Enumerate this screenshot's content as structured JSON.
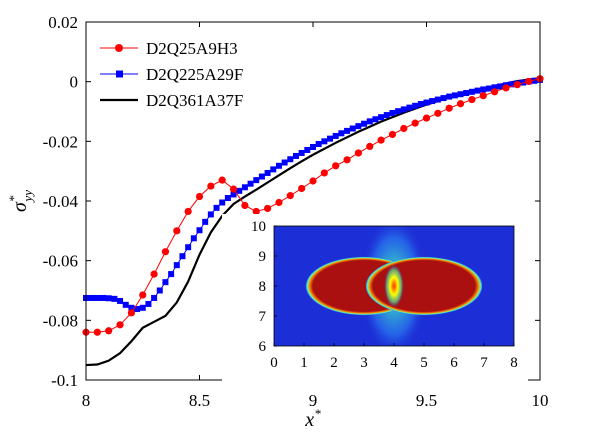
{
  "chart_data": [
    {
      "type": "line",
      "title": "",
      "xlabel": "x*",
      "ylabel": "σ*_yy",
      "xlim": [
        8,
        10
      ],
      "ylim": [
        -0.1,
        0.02
      ],
      "xticks": [
        "8",
        "8.5",
        "9",
        "9.5",
        "10"
      ],
      "yticks": [
        "-0.1",
        "-0.08",
        "-0.06",
        "-0.04",
        "-0.02",
        "0",
        "0.02"
      ],
      "legend_position": "top-left",
      "series": [
        {
          "name": "D2Q25A9H3",
          "color": "#ff0000",
          "marker": "circle",
          "x": [
            8.0,
            8.05,
            8.1,
            8.15,
            8.2,
            8.25,
            8.3,
            8.35,
            8.4,
            8.45,
            8.5,
            8.55,
            8.6,
            8.65,
            8.7,
            8.75,
            8.8,
            8.85,
            8.9,
            8.95,
            9.0,
            9.05,
            9.1,
            9.15,
            9.2,
            9.25,
            9.3,
            9.35,
            9.4,
            9.45,
            9.5,
            9.55,
            9.6,
            9.65,
            9.7,
            9.75,
            9.8,
            9.85,
            9.9,
            9.95,
            10.0
          ],
          "y": [
            -0.084,
            -0.084,
            -0.0835,
            -0.0815,
            -0.0775,
            -0.0715,
            -0.0645,
            -0.057,
            -0.05,
            -0.0435,
            -0.0385,
            -0.035,
            -0.033,
            -0.036,
            -0.0415,
            -0.0435,
            -0.0425,
            -0.0405,
            -0.0382,
            -0.0358,
            -0.0333,
            -0.0306,
            -0.0282,
            -0.0262,
            -0.0239,
            -0.0217,
            -0.0196,
            -0.0177,
            -0.0157,
            -0.0139,
            -0.0122,
            -0.0106,
            -0.0089,
            -0.0074,
            -0.006,
            -0.0047,
            -0.0034,
            -0.0021,
            -0.001,
            0.0001,
            0.001
          ]
        },
        {
          "name": "D2Q225A29F",
          "color": "#0000ff",
          "marker": "square",
          "x": [
            8.0,
            8.025,
            8.05,
            8.075,
            8.1,
            8.125,
            8.15,
            8.175,
            8.2,
            8.225,
            8.25,
            8.275,
            8.3,
            8.325,
            8.35,
            8.375,
            8.4,
            8.425,
            8.45,
            8.475,
            8.5,
            8.525,
            8.55,
            8.575,
            8.6,
            8.625,
            8.65,
            8.675,
            8.7,
            8.725,
            8.75,
            8.775,
            8.8,
            8.825,
            8.85,
            8.875,
            8.9,
            8.925,
            8.95,
            8.975,
            9.0,
            9.025,
            9.05,
            9.075,
            9.1,
            9.125,
            9.15,
            9.175,
            9.2,
            9.225,
            9.25,
            9.275,
            9.3,
            9.325,
            9.35,
            9.375,
            9.4,
            9.425,
            9.45,
            9.475,
            9.5,
            9.525,
            9.55,
            9.575,
            9.6,
            9.625,
            9.65,
            9.675,
            9.7,
            9.725,
            9.75,
            9.775,
            9.8,
            9.825,
            9.85,
            9.875,
            9.9,
            9.925,
            9.95,
            9.975,
            10.0
          ],
          "y": [
            -0.0725,
            -0.0725,
            -0.0725,
            -0.0725,
            -0.0726,
            -0.0728,
            -0.0735,
            -0.0748,
            -0.0758,
            -0.0762,
            -0.0758,
            -0.0745,
            -0.0725,
            -0.07,
            -0.0672,
            -0.0645,
            -0.0615,
            -0.0585,
            -0.0555,
            -0.0525,
            -0.0498,
            -0.047,
            -0.0445,
            -0.0423,
            -0.0405,
            -0.039,
            -0.0378,
            -0.0366,
            -0.0354,
            -0.0342,
            -0.033,
            -0.0318,
            -0.0306,
            -0.0294,
            -0.0282,
            -0.0271,
            -0.026,
            -0.0249,
            -0.0239,
            -0.0229,
            -0.0219,
            -0.0209,
            -0.02,
            -0.0191,
            -0.0182,
            -0.0173,
            -0.0165,
            -0.0157,
            -0.0149,
            -0.0141,
            -0.0133,
            -0.0126,
            -0.0119,
            -0.0112,
            -0.0105,
            -0.0099,
            -0.0093,
            -0.0087,
            -0.0081,
            -0.0075,
            -0.007,
            -0.0065,
            -0.006,
            -0.0055,
            -0.005,
            -0.0046,
            -0.0042,
            -0.0038,
            -0.0034,
            -0.003,
            -0.0026,
            -0.0023,
            -0.0019,
            -0.0016,
            -0.0012,
            -0.0009,
            -0.0006,
            -0.0003,
            0.0,
            0.0003,
            0.0006
          ]
        },
        {
          "name": "D2Q361A37F",
          "color": "#000000",
          "marker": "none",
          "x": [
            8.0,
            8.05,
            8.1,
            8.15,
            8.2,
            8.25,
            8.3,
            8.35,
            8.4,
            8.45,
            8.5,
            8.55,
            8.6,
            8.65,
            8.7,
            8.75,
            8.8,
            8.85,
            8.9,
            8.95,
            9.0,
            9.1,
            9.2,
            9.3,
            9.4,
            9.5,
            9.6,
            9.7,
            9.8,
            9.9,
            10.0
          ],
          "y": [
            -0.095,
            -0.0948,
            -0.0935,
            -0.091,
            -0.087,
            -0.0825,
            -0.0805,
            -0.0785,
            -0.074,
            -0.067,
            -0.058,
            -0.0505,
            -0.045,
            -0.041,
            -0.0385,
            -0.0362,
            -0.0338,
            -0.0314,
            -0.029,
            -0.0267,
            -0.0245,
            -0.0205,
            -0.0168,
            -0.0134,
            -0.0104,
            -0.0077,
            -0.0053,
            -0.0032,
            -0.0014,
            0.0002,
            0.0012
          ]
        }
      ]
    },
    {
      "type": "heatmap",
      "title": "",
      "xlim": [
        0,
        8
      ],
      "ylim": [
        6,
        10
      ],
      "xticks": [
        "0",
        "1",
        "2",
        "3",
        "4",
        "5",
        "6",
        "7",
        "8"
      ],
      "yticks": [
        "6",
        "7",
        "8",
        "9",
        "10"
      ],
      "colormap": "jet",
      "background_color": "#1c2fd6",
      "particles": [
        {
          "cx": 3.0,
          "cy": 8.0,
          "r": 2.0,
          "color": "#aa1010"
        },
        {
          "cx": 5.0,
          "cy": 8.0,
          "r": 2.0,
          "color": "#aa1010"
        }
      ],
      "contact_point": [
        4.0,
        8.0
      ]
    }
  ]
}
